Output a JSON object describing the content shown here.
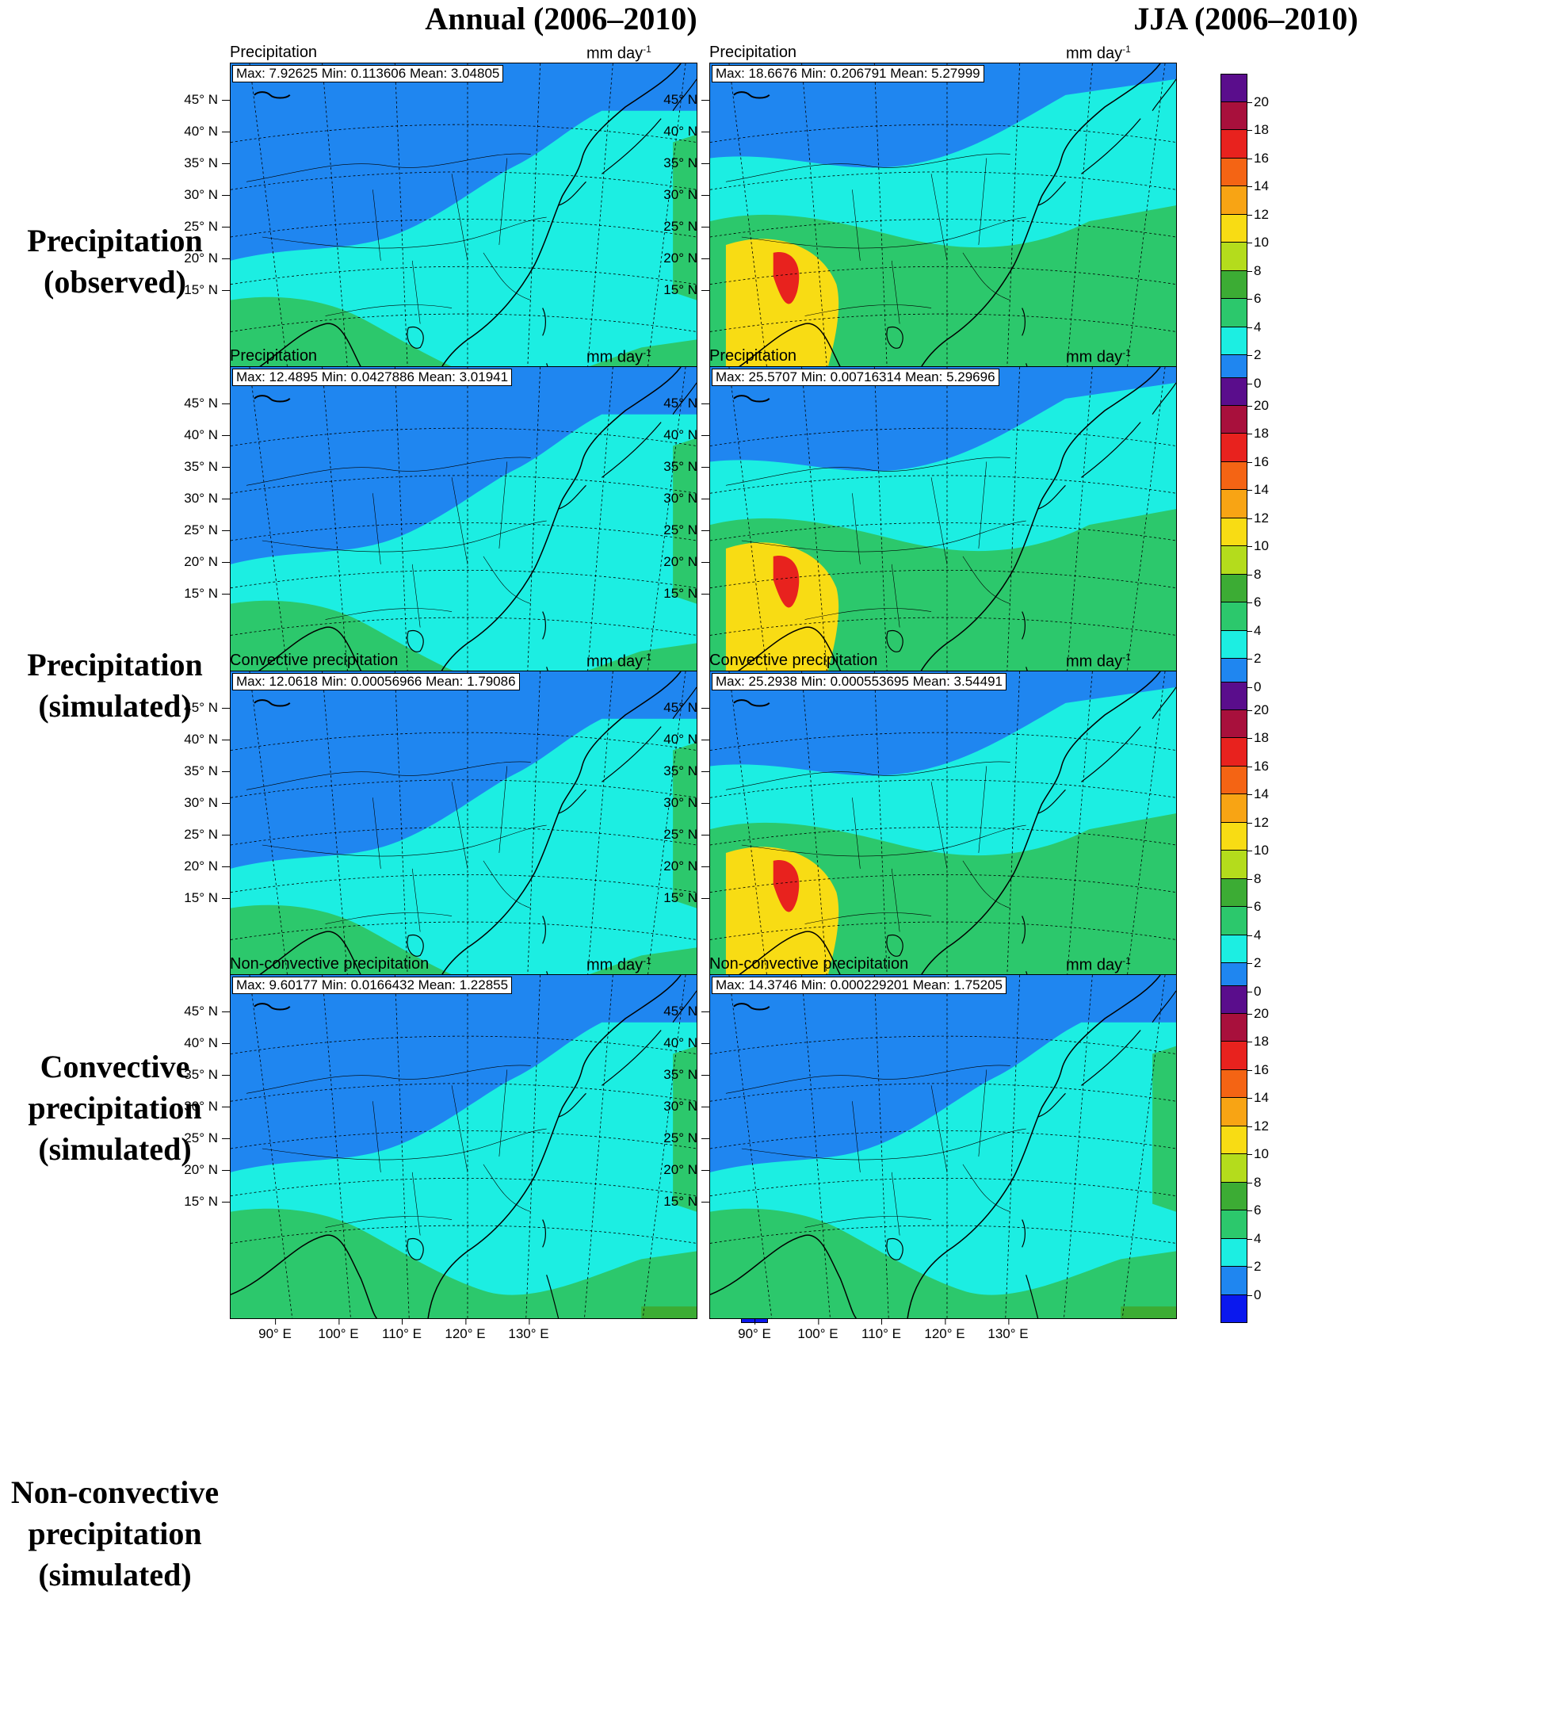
{
  "figure": {
    "column_headers": [
      "Annual (2006–2010)",
      "JJA (2006–2010)"
    ],
    "row_labels": [
      [
        "Precipitation",
        "(observed)"
      ],
      [
        "Precipitation",
        "(simulated)"
      ],
      [
        "Convective",
        "precipitation",
        "(simulated)"
      ],
      [
        "Non-convective",
        "precipitation",
        "(simulated)"
      ]
    ],
    "units": "mm day",
    "units_exponent": "-1",
    "latitude_labels": [
      "45° N",
      "40° N",
      "35° N",
      "30° N",
      "25° N",
      "20° N",
      "15° N"
    ],
    "longitude_labels": [
      "90° E",
      "100° E",
      "110° E",
      "120° E",
      "130° E"
    ],
    "colorbar": {
      "labels": [
        "20",
        "18",
        "16",
        "14",
        "12",
        "10",
        "8",
        "6",
        "4",
        "2",
        "0"
      ],
      "colors": [
        "#5a0d8c",
        "#a8103c",
        "#e8221e",
        "#f46414",
        "#f8a414",
        "#f8dc14",
        "#b4dc1c",
        "#3cac34",
        "#2cc86c",
        "#1ceee2",
        "#1f86f0",
        "#0a18ee"
      ]
    }
  },
  "panels": [
    {
      "title": "Precipitation",
      "stats": "Max: 7.92625  Min: 0.113606  Mean: 3.04805",
      "level": 0
    },
    {
      "title": "Precipitation",
      "stats": "Max: 18.6676  Min: 0.206791  Mean: 5.27999",
      "level": 1
    },
    {
      "title": "Precipitation",
      "stats": "Max: 12.4895  Min: 0.0427886  Mean: 3.01941",
      "level": 0
    },
    {
      "title": "Precipitation",
      "stats": "Max: 25.5707  Min: 0.00716314  Mean: 5.29696",
      "level": 1
    },
    {
      "title": "Convective precipitation",
      "stats": "Max: 12.0618  Min: 0.00056966  Mean: 1.79086",
      "level": 0
    },
    {
      "title": "Convective precipitation",
      "stats": "Max: 25.2938  Min: 0.000553695  Mean: 3.54491",
      "level": 1
    },
    {
      "title": "Non-convective precipitation",
      "stats": "Max: 9.60177  Min: 0.0166432  Mean: 1.22855",
      "level": 0
    },
    {
      "title": "Non-convective precipitation",
      "stats": "Max: 14.3746  Min: 0.000229201  Mean: 1.75205",
      "level": 0
    }
  ]
}
